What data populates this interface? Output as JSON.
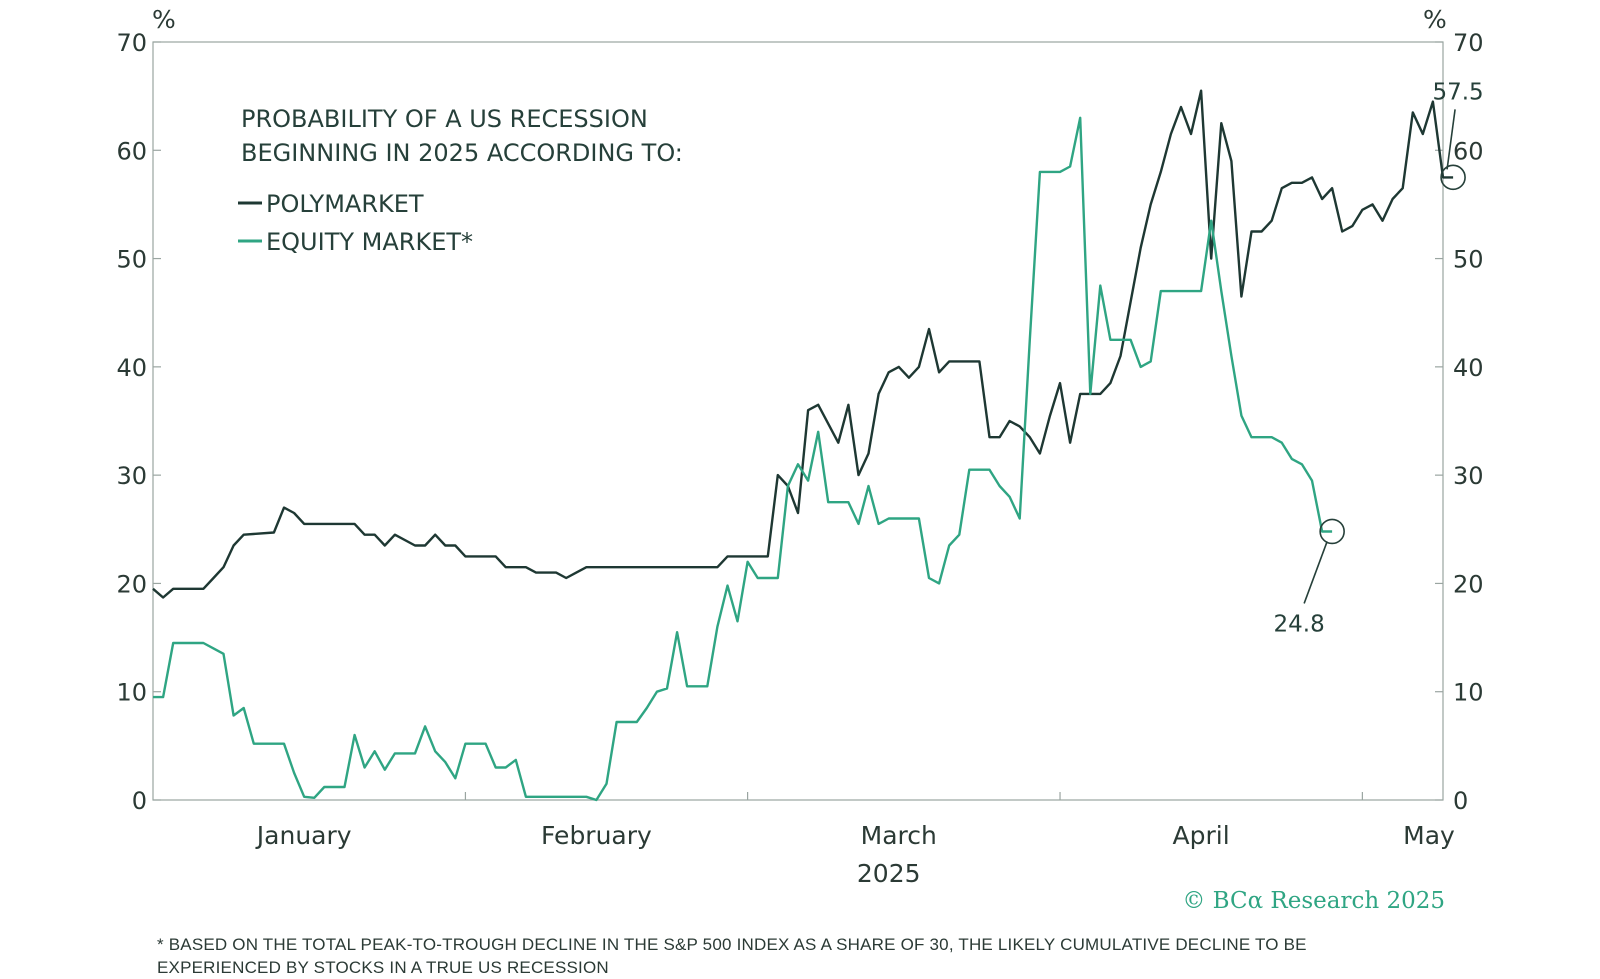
{
  "chart_data": {
    "type": "line",
    "title_lines": [
      "PROBABILITY OF A US RECESSION",
      "BEGINNING IN 2025 ACCORDING TO:"
    ],
    "y_unit_left": "%",
    "y_unit_right": "%",
    "ylim": [
      0,
      70
    ],
    "yticks": [
      0,
      10,
      20,
      30,
      40,
      50,
      60,
      70
    ],
    "month_labels": [
      "January",
      "February",
      "March",
      "April",
      "May"
    ],
    "year_label": "2025",
    "x_range": [
      "2025-01-01",
      "2025-05-09"
    ],
    "grid": false,
    "legend_placement": "top-left",
    "colors": {
      "polymarket": "#1e3833",
      "equity": "#2fa583",
      "axis": "#9aa5a1"
    },
    "series": [
      {
        "name": "POLYMARKET",
        "points": [
          [
            "2025-01-01",
            19.5
          ],
          [
            "2025-01-02",
            18.7
          ],
          [
            "2025-01-03",
            19.5
          ],
          [
            "2025-01-06",
            19.5
          ],
          [
            "2025-01-07",
            20.5
          ],
          [
            "2025-01-08",
            21.5
          ],
          [
            "2025-01-09",
            23.5
          ],
          [
            "2025-01-10",
            24.5
          ],
          [
            "2025-01-13",
            24.7
          ],
          [
            "2025-01-14",
            27.0
          ],
          [
            "2025-01-15",
            26.5
          ],
          [
            "2025-01-16",
            25.5
          ],
          [
            "2025-01-17",
            25.5
          ],
          [
            "2025-01-20",
            25.5
          ],
          [
            "2025-01-21",
            25.5
          ],
          [
            "2025-01-22",
            24.5
          ],
          [
            "2025-01-23",
            24.5
          ],
          [
            "2025-01-24",
            23.5
          ],
          [
            "2025-01-25",
            24.5
          ],
          [
            "2025-01-27",
            23.5
          ],
          [
            "2025-01-28",
            23.5
          ],
          [
            "2025-01-29",
            24.5
          ],
          [
            "2025-01-30",
            23.5
          ],
          [
            "2025-01-31",
            23.5
          ],
          [
            "2025-02-01",
            22.5
          ],
          [
            "2025-02-03",
            22.5
          ],
          [
            "2025-02-04",
            22.5
          ],
          [
            "2025-02-05",
            21.5
          ],
          [
            "2025-02-07",
            21.5
          ],
          [
            "2025-02-08",
            21.0
          ],
          [
            "2025-02-10",
            21.0
          ],
          [
            "2025-02-11",
            20.5
          ],
          [
            "2025-02-12",
            21.0
          ],
          [
            "2025-02-13",
            21.5
          ],
          [
            "2025-02-17",
            21.5
          ],
          [
            "2025-02-20",
            21.5
          ],
          [
            "2025-02-24",
            21.5
          ],
          [
            "2025-02-26",
            21.5
          ],
          [
            "2025-02-27",
            22.5
          ],
          [
            "2025-02-28",
            22.5
          ],
          [
            "2025-03-03",
            22.5
          ],
          [
            "2025-03-04",
            30.0
          ],
          [
            "2025-03-05",
            29.0
          ],
          [
            "2025-03-06",
            26.5
          ],
          [
            "2025-03-07",
            36.0
          ],
          [
            "2025-03-08",
            36.5
          ],
          [
            "2025-03-10",
            33.0
          ],
          [
            "2025-03-11",
            36.5
          ],
          [
            "2025-03-12",
            30.0
          ],
          [
            "2025-03-13",
            32.0
          ],
          [
            "2025-03-14",
            37.5
          ],
          [
            "2025-03-15",
            39.5
          ],
          [
            "2025-03-16",
            40.0
          ],
          [
            "2025-03-17",
            39.0
          ],
          [
            "2025-03-18",
            40.0
          ],
          [
            "2025-03-19",
            43.5
          ],
          [
            "2025-03-20",
            39.5
          ],
          [
            "2025-03-21",
            40.5
          ],
          [
            "2025-03-24",
            40.5
          ],
          [
            "2025-03-25",
            33.5
          ],
          [
            "2025-03-26",
            33.5
          ],
          [
            "2025-03-27",
            35.0
          ],
          [
            "2025-03-28",
            34.5
          ],
          [
            "2025-03-29",
            33.5
          ],
          [
            "2025-03-30",
            32.0
          ],
          [
            "2025-03-31",
            35.5
          ],
          [
            "2025-04-01",
            38.5
          ],
          [
            "2025-04-02",
            33.0
          ],
          [
            "2025-04-03",
            37.5
          ],
          [
            "2025-04-04",
            37.5
          ],
          [
            "2025-04-05",
            37.5
          ],
          [
            "2025-04-06",
            38.5
          ],
          [
            "2025-04-07",
            41.0
          ],
          [
            "2025-04-08",
            46.0
          ],
          [
            "2025-04-09",
            51.0
          ],
          [
            "2025-04-10",
            55.0
          ],
          [
            "2025-04-11",
            58.0
          ],
          [
            "2025-04-12",
            61.5
          ],
          [
            "2025-04-13",
            64.0
          ],
          [
            "2025-04-14",
            61.5
          ],
          [
            "2025-04-15",
            65.5
          ],
          [
            "2025-04-16",
            50.0
          ],
          [
            "2025-04-17",
            62.5
          ],
          [
            "2025-04-18",
            59.0
          ],
          [
            "2025-04-19",
            46.5
          ],
          [
            "2025-04-20",
            52.5
          ],
          [
            "2025-04-21",
            52.5
          ],
          [
            "2025-04-22",
            53.5
          ],
          [
            "2025-04-23",
            56.5
          ],
          [
            "2025-04-24",
            57.0
          ],
          [
            "2025-04-25",
            57.0
          ],
          [
            "2025-04-26",
            57.5
          ],
          [
            "2025-04-27",
            55.5
          ],
          [
            "2025-04-28",
            56.5
          ],
          [
            "2025-04-29",
            52.5
          ],
          [
            "2025-04-30",
            53.0
          ],
          [
            "2025-05-01",
            54.5
          ],
          [
            "2025-05-02",
            55.0
          ],
          [
            "2025-05-03",
            53.5
          ],
          [
            "2025-05-04",
            55.5
          ],
          [
            "2025-05-05",
            56.5
          ],
          [
            "2025-05-06",
            63.5
          ],
          [
            "2025-05-07",
            61.5
          ],
          [
            "2025-05-08",
            64.5
          ],
          [
            "2025-05-09",
            57.5
          ],
          [
            "2025-05-10",
            57.5
          ]
        ]
      },
      {
        "name": "EQUITY MARKET*",
        "points": [
          [
            "2025-01-01",
            9.5
          ],
          [
            "2025-01-02",
            9.5
          ],
          [
            "2025-01-03",
            14.5
          ],
          [
            "2025-01-06",
            14.5
          ],
          [
            "2025-01-07",
            14.0
          ],
          [
            "2025-01-08",
            13.5
          ],
          [
            "2025-01-09",
            7.8
          ],
          [
            "2025-01-10",
            8.5
          ],
          [
            "2025-01-11",
            5.2
          ],
          [
            "2025-01-13",
            5.2
          ],
          [
            "2025-01-14",
            5.2
          ],
          [
            "2025-01-15",
            2.5
          ],
          [
            "2025-01-16",
            0.3
          ],
          [
            "2025-01-17",
            0.2
          ],
          [
            "2025-01-18",
            1.2
          ],
          [
            "2025-01-20",
            1.2
          ],
          [
            "2025-01-21",
            6.0
          ],
          [
            "2025-01-22",
            3.0
          ],
          [
            "2025-01-23",
            4.5
          ],
          [
            "2025-01-24",
            2.8
          ],
          [
            "2025-01-25",
            4.3
          ],
          [
            "2025-01-27",
            4.3
          ],
          [
            "2025-01-28",
            6.8
          ],
          [
            "2025-01-29",
            4.5
          ],
          [
            "2025-01-30",
            3.5
          ],
          [
            "2025-01-31",
            2.0
          ],
          [
            "2025-02-01",
            5.2
          ],
          [
            "2025-02-03",
            5.2
          ],
          [
            "2025-02-04",
            3.0
          ],
          [
            "2025-02-05",
            3.0
          ],
          [
            "2025-02-06",
            3.7
          ],
          [
            "2025-02-07",
            0.3
          ],
          [
            "2025-02-10",
            0.3
          ],
          [
            "2025-02-13",
            0.3
          ],
          [
            "2025-02-14",
            0.0
          ],
          [
            "2025-02-15",
            1.5
          ],
          [
            "2025-02-16",
            7.2
          ],
          [
            "2025-02-18",
            7.2
          ],
          [
            "2025-02-19",
            8.5
          ],
          [
            "2025-02-20",
            10.0
          ],
          [
            "2025-02-21",
            10.3
          ],
          [
            "2025-02-22",
            15.5
          ],
          [
            "2025-02-23",
            10.5
          ],
          [
            "2025-02-25",
            10.5
          ],
          [
            "2025-02-26",
            16.0
          ],
          [
            "2025-02-27",
            19.8
          ],
          [
            "2025-02-28",
            16.5
          ],
          [
            "2025-03-01",
            22.0
          ],
          [
            "2025-03-02",
            20.5
          ],
          [
            "2025-03-04",
            20.5
          ],
          [
            "2025-03-05",
            29.0
          ],
          [
            "2025-03-06",
            31.0
          ],
          [
            "2025-03-07",
            29.5
          ],
          [
            "2025-03-08",
            34.0
          ],
          [
            "2025-03-09",
            27.5
          ],
          [
            "2025-03-11",
            27.5
          ],
          [
            "2025-03-12",
            25.5
          ],
          [
            "2025-03-13",
            29.0
          ],
          [
            "2025-03-14",
            25.5
          ],
          [
            "2025-03-15",
            26.0
          ],
          [
            "2025-03-17",
            26.0
          ],
          [
            "2025-03-18",
            26.0
          ],
          [
            "2025-03-19",
            20.5
          ],
          [
            "2025-03-20",
            20.0
          ],
          [
            "2025-03-21",
            23.5
          ],
          [
            "2025-03-22",
            24.5
          ],
          [
            "2025-03-23",
            30.5
          ],
          [
            "2025-03-25",
            30.5
          ],
          [
            "2025-03-26",
            29.0
          ],
          [
            "2025-03-27",
            28.0
          ],
          [
            "2025-03-28",
            26.0
          ],
          [
            "2025-03-29",
            42.5
          ],
          [
            "2025-03-30",
            58.0
          ],
          [
            "2025-03-31",
            58.0
          ],
          [
            "2025-04-01",
            58.0
          ],
          [
            "2025-04-02",
            58.5
          ],
          [
            "2025-04-03",
            63.0
          ],
          [
            "2025-04-04",
            37.5
          ],
          [
            "2025-04-05",
            47.5
          ],
          [
            "2025-04-06",
            42.5
          ],
          [
            "2025-04-08",
            42.5
          ],
          [
            "2025-04-09",
            40.0
          ],
          [
            "2025-04-10",
            40.5
          ],
          [
            "2025-04-11",
            47.0
          ],
          [
            "2025-04-13",
            47.0
          ],
          [
            "2025-04-15",
            47.0
          ],
          [
            "2025-04-16",
            53.5
          ],
          [
            "2025-04-17",
            47.0
          ],
          [
            "2025-04-18",
            41.0
          ],
          [
            "2025-04-19",
            35.5
          ],
          [
            "2025-04-20",
            33.5
          ],
          [
            "2025-04-22",
            33.5
          ],
          [
            "2025-04-23",
            33.0
          ],
          [
            "2025-04-24",
            31.5
          ],
          [
            "2025-04-25",
            31.0
          ],
          [
            "2025-04-26",
            29.5
          ],
          [
            "2025-04-27",
            24.8
          ],
          [
            "2025-04-28",
            24.8
          ]
        ]
      }
    ],
    "annotations": [
      {
        "series": "POLYMARKET",
        "text": "57.5",
        "at": [
          "2025-05-10",
          57.5
        ]
      },
      {
        "series": "EQUITY MARKET*",
        "text": "24.8",
        "at": [
          "2025-04-28",
          24.8
        ]
      }
    ]
  },
  "credit": "© BCα Research 2025",
  "footnote_lines": [
    "* BASED ON THE TOTAL PEAK-TO-TROUGH DECLINE IN THE S&P 500 INDEX AS A SHARE OF 30, THE LIKELY CUMULATIVE DECLINE TO BE",
    "EXPERIENCED BY STOCKS IN A TRUE US RECESSION"
  ]
}
